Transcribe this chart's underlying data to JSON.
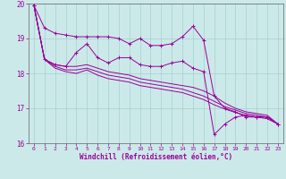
{
  "xlabel": "Windchill (Refroidissement éolien,°C)",
  "background_color": "#cce9e9",
  "grid_color": "#aad4d4",
  "line_color": "#990099",
  "xlim": [
    -0.5,
    23.5
  ],
  "ylim": [
    16,
    20
  ],
  "yticks": [
    16,
    17,
    18,
    19,
    20
  ],
  "xticks": [
    0,
    1,
    2,
    3,
    4,
    5,
    6,
    7,
    8,
    9,
    10,
    11,
    12,
    13,
    14,
    15,
    16,
    17,
    18,
    19,
    20,
    21,
    22,
    23
  ],
  "series": [
    {
      "x": [
        0,
        1,
        2,
        3,
        4,
        5,
        6,
        7,
        8,
        9,
        10,
        11,
        12,
        13,
        14,
        15,
        16,
        17,
        18,
        19,
        20,
        21,
        22,
        23
      ],
      "y": [
        19.95,
        19.3,
        19.15,
        19.1,
        19.05,
        19.05,
        19.05,
        19.05,
        19.0,
        18.85,
        19.0,
        18.8,
        18.8,
        18.85,
        19.05,
        19.35,
        18.95,
        17.35,
        17.0,
        16.9,
        16.75,
        16.75,
        16.75,
        16.55
      ],
      "marker": true
    },
    {
      "x": [
        0,
        1,
        2,
        3,
        4,
        5,
        6,
        7,
        8,
        9,
        10,
        11,
        12,
        13,
        14,
        15,
        16,
        17,
        18,
        19,
        20,
        21,
        22,
        23
      ],
      "y": [
        19.95,
        18.4,
        18.25,
        18.2,
        18.6,
        18.85,
        18.45,
        18.3,
        18.45,
        18.45,
        18.25,
        18.2,
        18.2,
        18.3,
        18.35,
        18.15,
        18.05,
        16.25,
        16.55,
        16.75,
        16.8,
        16.75,
        16.75,
        16.55
      ],
      "marker": true
    },
    {
      "x": [
        0,
        1,
        2,
        3,
        4,
        5,
        6,
        7,
        8,
        9,
        10,
        11,
        12,
        13,
        14,
        15,
        16,
        17,
        18,
        19,
        20,
        21,
        22,
        23
      ],
      "y": [
        19.95,
        18.4,
        18.25,
        18.2,
        18.2,
        18.25,
        18.15,
        18.05,
        18.0,
        17.95,
        17.85,
        17.8,
        17.75,
        17.7,
        17.65,
        17.6,
        17.5,
        17.35,
        17.15,
        17.0,
        16.9,
        16.85,
        16.8,
        16.55
      ],
      "marker": false
    },
    {
      "x": [
        0,
        1,
        2,
        3,
        4,
        5,
        6,
        7,
        8,
        9,
        10,
        11,
        12,
        13,
        14,
        15,
        16,
        17,
        18,
        19,
        20,
        21,
        22,
        23
      ],
      "y": [
        19.95,
        18.4,
        18.2,
        18.1,
        18.1,
        18.15,
        18.05,
        17.95,
        17.9,
        17.85,
        17.75,
        17.7,
        17.65,
        17.6,
        17.55,
        17.45,
        17.35,
        17.2,
        17.05,
        16.95,
        16.85,
        16.8,
        16.75,
        16.55
      ],
      "marker": false
    },
    {
      "x": [
        0,
        1,
        2,
        3,
        4,
        5,
        6,
        7,
        8,
        9,
        10,
        11,
        12,
        13,
        14,
        15,
        16,
        17,
        18,
        19,
        20,
        21,
        22,
        23
      ],
      "y": [
        19.95,
        18.4,
        18.15,
        18.05,
        18.0,
        18.1,
        17.95,
        17.85,
        17.8,
        17.75,
        17.65,
        17.6,
        17.55,
        17.5,
        17.45,
        17.35,
        17.25,
        17.1,
        16.98,
        16.88,
        16.8,
        16.75,
        16.7,
        16.55
      ],
      "marker": false
    }
  ]
}
